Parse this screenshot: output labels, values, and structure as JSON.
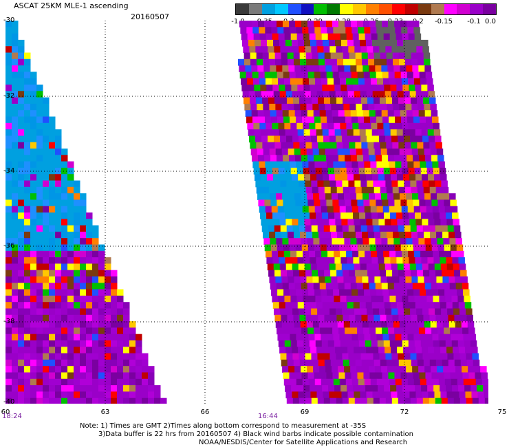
{
  "header": {
    "title": "ASCAT 25KM MLE-1 ascending",
    "date": "20160507"
  },
  "colorbar": {
    "colors": [
      "#3a3a3a",
      "#7a7a7a",
      "#00a0e0",
      "#00c8ff",
      "#2050ff",
      "#1010c0",
      "#00c000",
      "#007a00",
      "#ffff00",
      "#ffc800",
      "#ff8000",
      "#ff5000",
      "#ff0000",
      "#c00000",
      "#7a3a10",
      "#b07a50",
      "#ff00ff",
      "#d000d0",
      "#9a00c8",
      "#7a00a0"
    ],
    "labels": [
      "-1.0",
      "-0.35",
      "-0.3",
      "-0.29",
      "-0.28",
      "-0.26",
      "-0.23",
      "-0.2",
      "-0.15",
      "-0.1",
      "0.0"
    ]
  },
  "axes": {
    "y_ticks": [
      "-30",
      "-32",
      "-34",
      "-36",
      "-38",
      "-40"
    ],
    "x_ticks": [
      "60",
      "63",
      "66",
      "69",
      "72",
      "75"
    ],
    "pass_times": [
      "18:24",
      "16:44"
    ]
  },
  "notes": [
    "Note: 1) Times are GMT 2)Times along bottom correspond to measurement at -35S",
    "3)Data buffer is 22 hrs from 20160507 4) Black wind barbs indicate possible contamination",
    "NOAA/NESDIS/Center for Satellite Applications and Research"
  ],
  "chart_data": {
    "type": "heatmap",
    "title": "ASCAT 25KM MLE-1 ascending",
    "xlim": [
      60,
      75
    ],
    "ylim": [
      -40,
      -30
    ],
    "legend_placement": "top-right",
    "swaths": [
      {
        "pass_time": "18:24"
      },
      {
        "pass_time": "16:44"
      }
    ]
  }
}
